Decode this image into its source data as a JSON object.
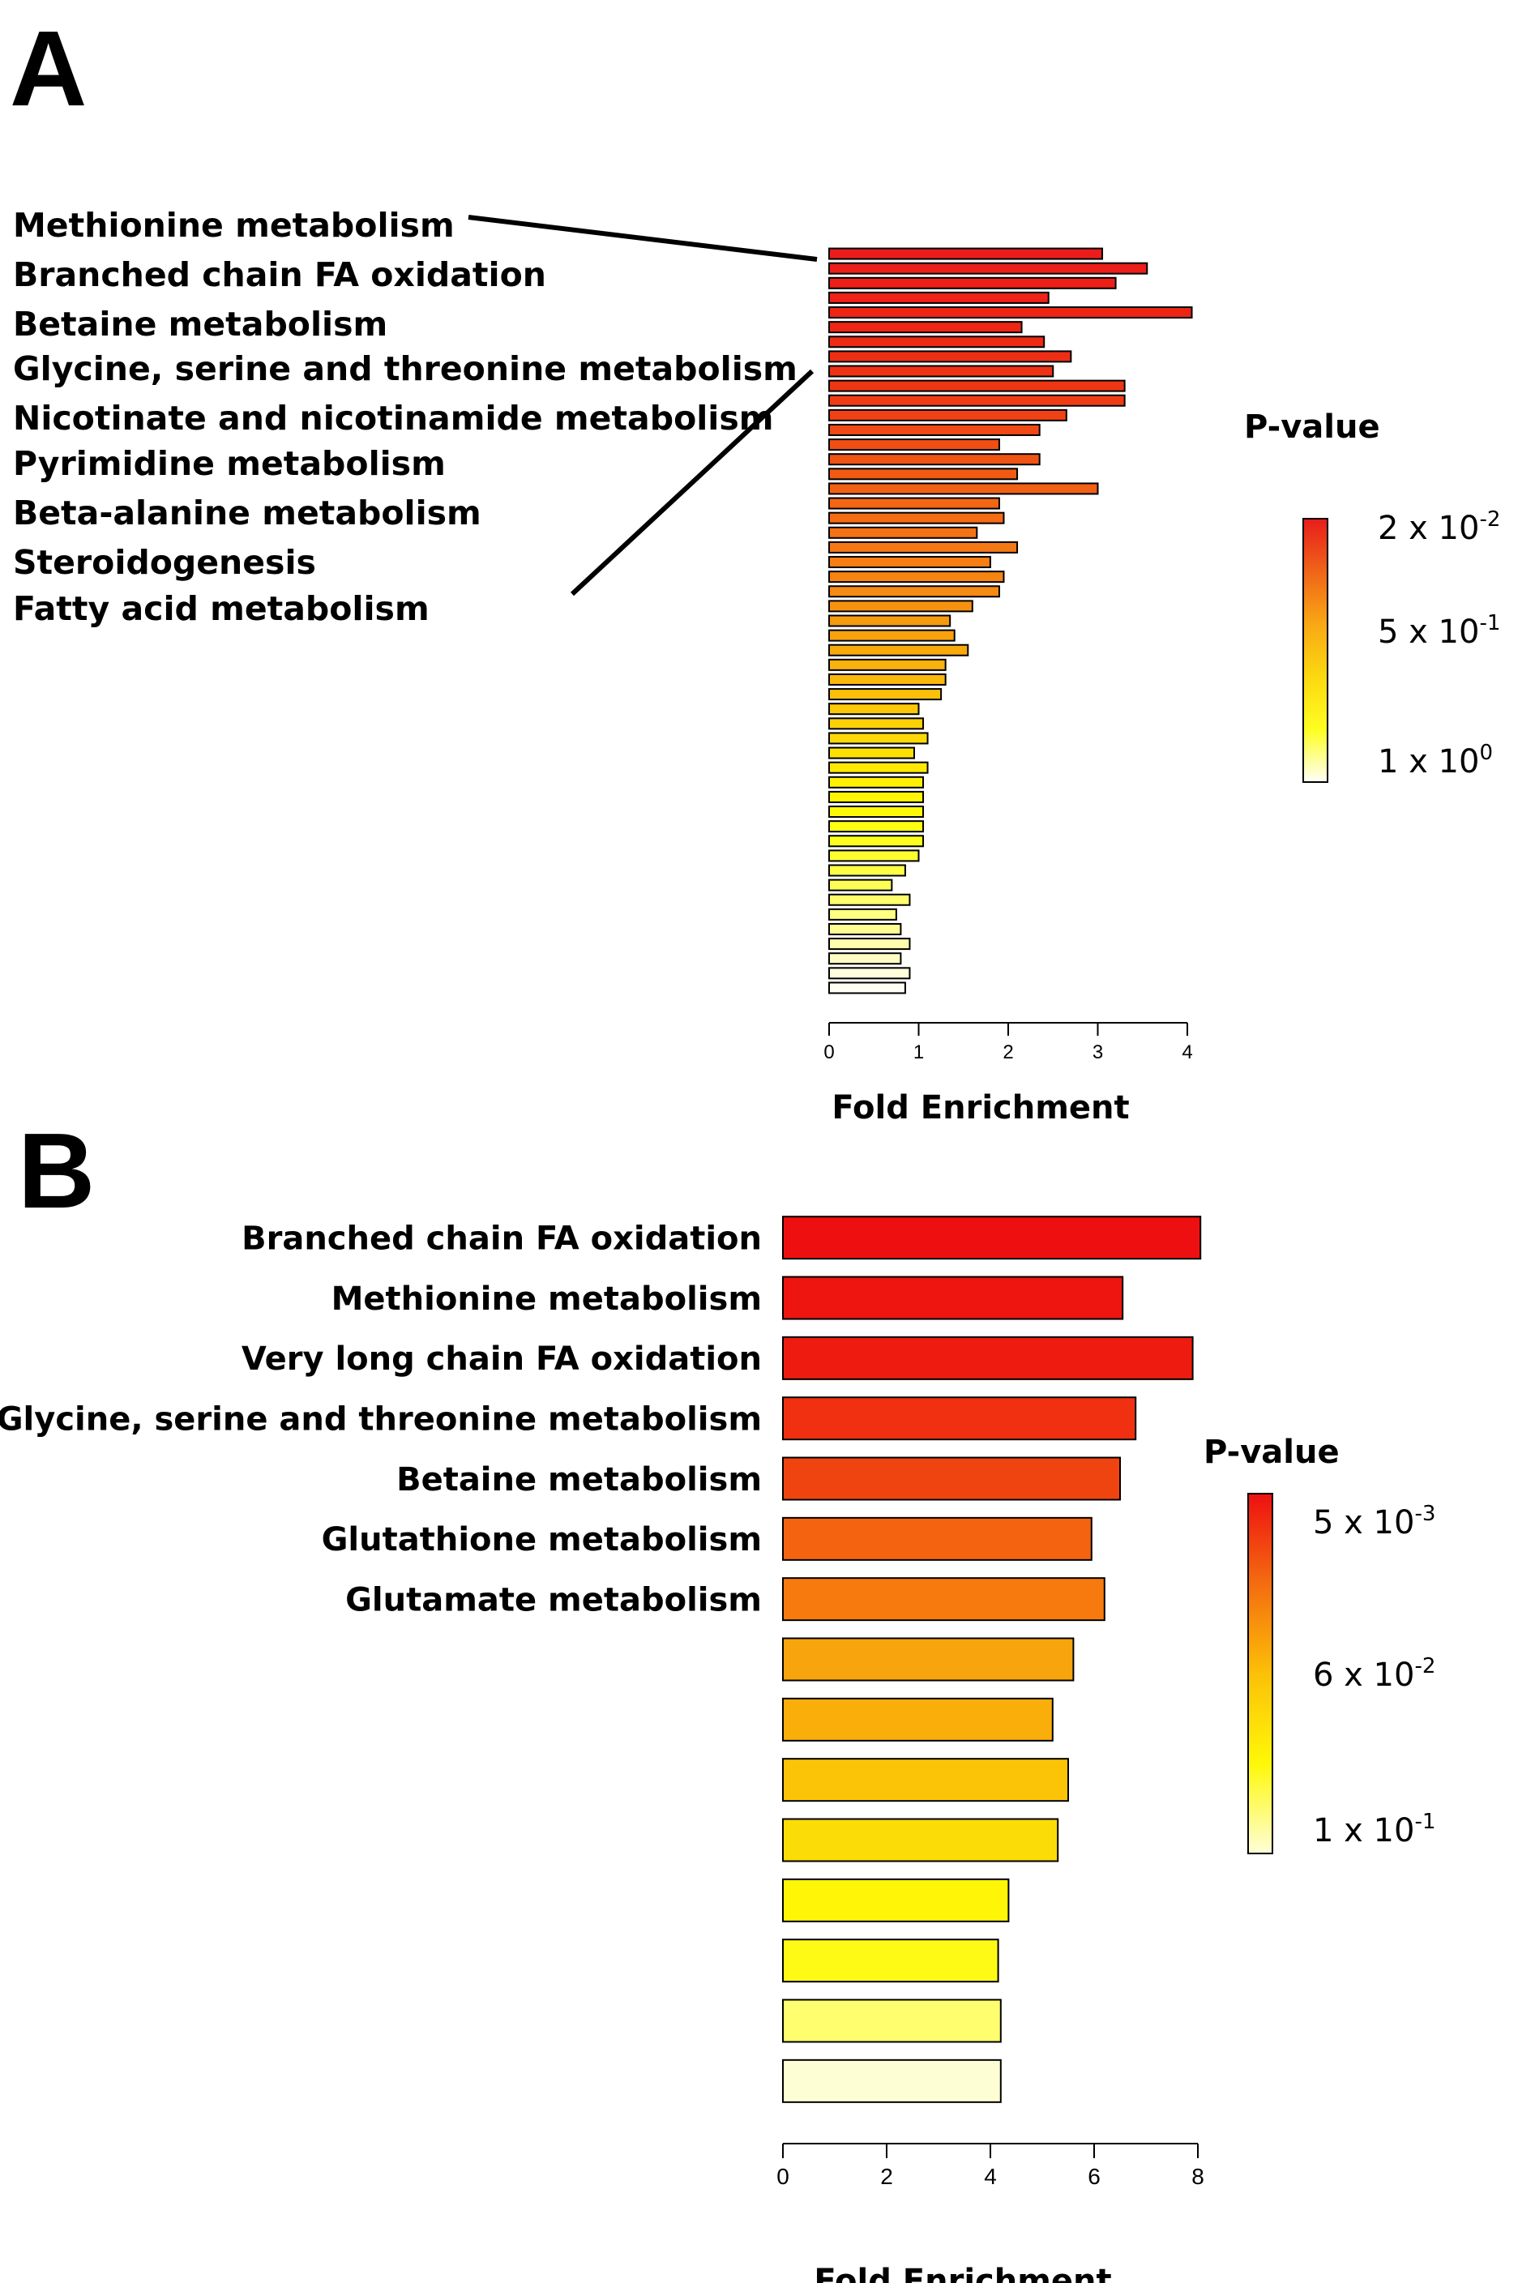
{
  "panel_a": {
    "letter": "A",
    "labels": [
      "Methionine metabolism",
      "Branched chain FA oxidation",
      "Betaine metabolism",
      "Glycine, serine and threonine metabolism",
      "Nicotinate and nicotinamide metabolism",
      "Pyrimidine metabolism",
      "Beta-alanine metabolism",
      "Steroidogenesis",
      "Fatty acid metabolism"
    ],
    "legend": {
      "title": "P-value",
      "labels": [
        {
          "base": "2 x 10",
          "exp": "-2"
        },
        {
          "base": "5 x 10",
          "exp": "-1"
        },
        {
          "base": "1 x 10",
          "exp": "0"
        }
      ]
    }
  },
  "panel_b": {
    "letter": "B",
    "legend": {
      "title": "P-value",
      "labels": [
        {
          "base": "5 x 10",
          "exp": "-3"
        },
        {
          "base": "6 x 10",
          "exp": "-2"
        },
        {
          "base": "1 x 10",
          "exp": "-1"
        }
      ]
    }
  },
  "chart_data": [
    {
      "type": "bar",
      "orientation": "horizontal",
      "panel": "A",
      "xlabel": "Fold Enrichment",
      "xlim": [
        0,
        4
      ],
      "xticks": [
        0,
        1,
        2,
        3,
        4
      ],
      "values": [
        3.05,
        3.55,
        3.2,
        2.45,
        4.05,
        2.15,
        2.4,
        2.7,
        2.5,
        3.3,
        3.3,
        2.65,
        2.35,
        1.9,
        2.35,
        2.1,
        3.0,
        1.9,
        1.95,
        1.65,
        2.1,
        1.8,
        1.95,
        1.9,
        1.6,
        1.35,
        1.4,
        1.55,
        1.3,
        1.3,
        1.25,
        1.0,
        1.05,
        1.1,
        0.95,
        1.1,
        1.05,
        1.05,
        1.05,
        1.05,
        1.05,
        1.0,
        0.85,
        0.7,
        0.9,
        0.75,
        0.8,
        0.9,
        0.8,
        0.9,
        0.85
      ],
      "colors": [
        "#ec1c1c",
        "#ec1e1a",
        "#ec2018",
        "#ee2216",
        "#ee2414",
        "#ee2614",
        "#ee2a14",
        "#ee2e14",
        "#ee3214",
        "#ee3614",
        "#f03c14",
        "#f04214",
        "#f04814",
        "#f04e14",
        "#f05414",
        "#f25a14",
        "#f26014",
        "#f26614",
        "#f46c14",
        "#f47214",
        "#f47814",
        "#f67e12",
        "#f68412",
        "#f68a12",
        "#f69210",
        "#f69a0e",
        "#f8a20e",
        "#f8aa0c",
        "#f8b20c",
        "#fab80a",
        "#fac00a",
        "#fcc808",
        "#fcd006",
        "#fcd806",
        "#fce004",
        "#fee804",
        "#fef004",
        "#fef404",
        "#fefa06",
        "#fefe10",
        "#fefe1e",
        "#fefe30",
        "#fefe44",
        "#fefe58",
        "#fefe6c",
        "#fefe80",
        "#fefe94",
        "#fefeac",
        "#fefec4",
        "#fefedc",
        "#fefef4"
      ],
      "legend": {
        "title": "P-value",
        "gradient": [
          "#e81c1c",
          "#f06418",
          "#f8a814",
          "#fcd810",
          "#fefe20",
          "#fefef8"
        ]
      }
    },
    {
      "type": "bar",
      "orientation": "horizontal",
      "panel": "B",
      "xlabel": "Fold Enrichment",
      "xlim": [
        0,
        8
      ],
      "xticks": [
        0,
        2,
        4,
        6,
        8
      ],
      "categories": [
        "Branched chain FA oxidation",
        "Methionine metabolism",
        "Very long chain FA oxidation",
        "Glycine, serine and threonine metabolism",
        "Betaine metabolism",
        "Glutathione metabolism",
        "Glutamate metabolism",
        "",
        "",
        "",
        "",
        "",
        "",
        "",
        ""
      ],
      "values": [
        8.05,
        6.55,
        7.9,
        6.8,
        6.5,
        5.95,
        6.2,
        5.6,
        5.2,
        5.5,
        5.3,
        4.35,
        4.15,
        4.2,
        4.2
      ],
      "colors": [
        "#ee1010",
        "#ee1410",
        "#ee1c10",
        "#f03010",
        "#f04410",
        "#f46410",
        "#f67a0e",
        "#f8a40c",
        "#faae0a",
        "#fcc406",
        "#fcdc06",
        "#fef606",
        "#fefa16",
        "#fefe6e",
        "#fefed4"
      ],
      "legend": {
        "title": "P-value",
        "gradient": [
          "#ee1010",
          "#f46c10",
          "#fcc008",
          "#fef808",
          "#fefed8"
        ]
      }
    }
  ]
}
